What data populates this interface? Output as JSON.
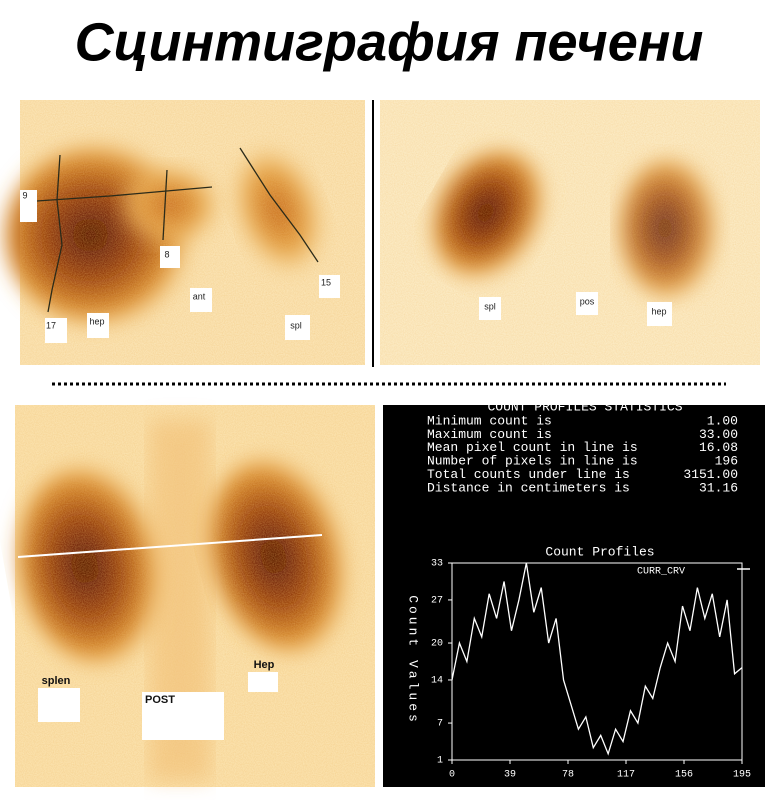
{
  "title": "Сцинтиграфия печени",
  "panel_top_left": {
    "labels": [
      "9",
      "8",
      "15",
      "17",
      "hep",
      "ant",
      "spl"
    ]
  },
  "panel_top_right": {
    "labels": [
      "spl",
      "pos",
      "hep"
    ]
  },
  "panel_bottom_left": {
    "labels": [
      "splen",
      "POST",
      "Hep"
    ]
  },
  "statistics": {
    "header": "COUNT PROFILES STATISTICS",
    "rows": [
      [
        "Minimum count is",
        "1.00"
      ],
      [
        "Maximum count is",
        "33.00"
      ],
      [
        "Mean pixel count in line is",
        "16.08"
      ],
      [
        "Number of pixels in line is",
        "196"
      ],
      [
        "Total counts under line is",
        "3151.00"
      ],
      [
        "Distance in centimeters is",
        "31.16"
      ]
    ]
  },
  "chart_data": {
    "type": "line",
    "title": "Count Profiles",
    "y_label": "Count Values",
    "legend": "CURR_CRV",
    "color": "#ffffff",
    "xlim": [
      0,
      195
    ],
    "ylim": [
      1,
      33
    ],
    "xticks": [
      0,
      39,
      78,
      117,
      156,
      195
    ],
    "yticks": [
      1,
      7,
      14,
      20,
      27,
      33
    ],
    "x": [
      0,
      5,
      10,
      15,
      20,
      25,
      30,
      35,
      40,
      45,
      50,
      55,
      60,
      65,
      70,
      75,
      80,
      85,
      90,
      95,
      100,
      105,
      110,
      115,
      120,
      125,
      130,
      135,
      140,
      145,
      150,
      155,
      160,
      165,
      170,
      175,
      180,
      185,
      190,
      195
    ],
    "values": [
      14,
      20,
      17,
      24,
      21,
      28,
      24,
      30,
      22,
      27,
      33,
      25,
      29,
      20,
      24,
      14,
      10,
      6,
      8,
      3,
      5,
      2,
      6,
      4,
      9,
      7,
      13,
      11,
      16,
      20,
      17,
      26,
      22,
      29,
      24,
      28,
      21,
      27,
      15,
      16
    ]
  }
}
